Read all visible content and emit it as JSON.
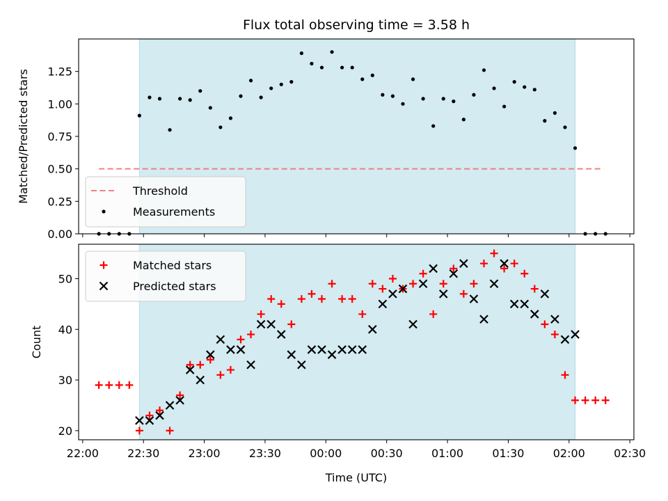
{
  "figure": {
    "title": "Flux total observing time = 3.58 h",
    "xlabel": "Time (UTC)",
    "colors": {
      "observing_span": "#d3ebf1",
      "observing_span_edge": "#b3d9e6",
      "threshold": "#f08080",
      "measurements": "#000000",
      "matched": "#ff0000",
      "predicted": "#000000"
    }
  },
  "chart_data": [
    {
      "type": "scatter",
      "ylabel": "Matched/Predicted stars",
      "xlim": [
        "21:58",
        "02:32"
      ],
      "ylim": [
        0,
        1.5
      ],
      "x_ticks": [
        "22:00",
        "22:30",
        "23:00",
        "23:30",
        "00:00",
        "00:30",
        "01:00",
        "01:30",
        "02:00",
        "02:30"
      ],
      "y_ticks": [
        "0.00",
        "0.25",
        "0.50",
        "0.75",
        "1.00",
        "1.25"
      ],
      "observing_span": [
        "22:28",
        "02:03"
      ],
      "legend": {
        "placement": "lower-left",
        "entries": [
          "Threshold",
          "Measurements"
        ]
      },
      "series": [
        {
          "name": "Threshold",
          "type": "line",
          "style": "dashed",
          "x": [
            "22:08",
            "02:17"
          ],
          "values": [
            0.5,
            0.5
          ]
        },
        {
          "name": "Measurements",
          "type": "scatter",
          "x": [
            "22:08",
            "22:13",
            "22:18",
            "22:23",
            "22:28",
            "22:33",
            "22:38",
            "22:43",
            "22:48",
            "22:53",
            "22:58",
            "23:03",
            "23:08",
            "23:13",
            "23:18",
            "23:23",
            "23:28",
            "23:33",
            "23:38",
            "23:43",
            "23:48",
            "23:53",
            "23:58",
            "00:03",
            "00:08",
            "00:13",
            "00:18",
            "00:23",
            "00:28",
            "00:33",
            "00:38",
            "00:43",
            "00:48",
            "00:53",
            "00:58",
            "01:03",
            "01:08",
            "01:13",
            "01:18",
            "01:23",
            "01:28",
            "01:33",
            "01:38",
            "01:43",
            "01:48",
            "01:53",
            "01:58",
            "02:03",
            "02:08",
            "02:13",
            "02:18"
          ],
          "values": [
            0,
            0,
            0,
            0,
            0.91,
            1.05,
            1.04,
            0.8,
            1.04,
            1.03,
            1.1,
            0.97,
            0.82,
            0.89,
            1.06,
            1.18,
            1.05,
            1.12,
            1.15,
            1.17,
            1.39,
            1.31,
            1.28,
            1.4,
            1.28,
            1.28,
            1.19,
            1.22,
            1.07,
            1.06,
            1.0,
            1.19,
            1.04,
            0.83,
            1.04,
            1.02,
            0.88,
            1.07,
            1.26,
            1.12,
            0.98,
            1.17,
            1.13,
            1.11,
            0.87,
            0.93,
            0.82,
            0.66,
            0,
            0,
            0
          ]
        }
      ]
    },
    {
      "type": "scatter",
      "ylabel": "Count",
      "xlim": [
        "21:58",
        "02:32"
      ],
      "ylim": [
        18.2,
        56.8
      ],
      "x_ticks": [
        "22:00",
        "22:30",
        "23:00",
        "23:30",
        "00:00",
        "00:30",
        "01:00",
        "01:30",
        "02:00",
        "02:30"
      ],
      "y_ticks": [
        "20",
        "30",
        "40",
        "50"
      ],
      "observing_span": [
        "22:28",
        "02:03"
      ],
      "legend": {
        "placement": "upper-left",
        "entries": [
          "Matched stars",
          "Predicted stars"
        ]
      },
      "series": [
        {
          "name": "Matched stars",
          "marker": "plus",
          "x": [
            "22:08",
            "22:13",
            "22:18",
            "22:23",
            "22:28",
            "22:33",
            "22:38",
            "22:43",
            "22:48",
            "22:53",
            "22:58",
            "23:03",
            "23:08",
            "23:13",
            "23:18",
            "23:23",
            "23:28",
            "23:33",
            "23:38",
            "23:43",
            "23:48",
            "23:53",
            "23:58",
            "00:03",
            "00:08",
            "00:13",
            "00:18",
            "00:23",
            "00:28",
            "00:33",
            "00:38",
            "00:43",
            "00:48",
            "00:53",
            "00:58",
            "01:03",
            "01:08",
            "01:13",
            "01:18",
            "01:23",
            "01:28",
            "01:33",
            "01:38",
            "01:43",
            "01:48",
            "01:53",
            "01:58",
            "02:03",
            "02:08",
            "02:13",
            "02:18"
          ],
          "values": [
            29,
            29,
            29,
            29,
            20,
            23,
            24,
            20,
            27,
            33,
            33,
            34,
            31,
            32,
            38,
            39,
            43,
            46,
            45,
            41,
            46,
            47,
            46,
            49,
            46,
            46,
            43,
            49,
            48,
            50,
            48,
            49,
            51,
            43,
            49,
            52,
            47,
            49,
            53,
            55,
            52,
            53,
            51,
            48,
            41,
            39,
            31,
            26,
            26,
            26,
            26
          ]
        },
        {
          "name": "Predicted stars",
          "marker": "x",
          "x": [
            "22:28",
            "22:33",
            "22:38",
            "22:43",
            "22:48",
            "22:53",
            "22:58",
            "23:03",
            "23:08",
            "23:13",
            "23:18",
            "23:23",
            "23:28",
            "23:33",
            "23:38",
            "23:43",
            "23:48",
            "23:53",
            "23:58",
            "00:03",
            "00:08",
            "00:13",
            "00:18",
            "00:23",
            "00:28",
            "00:33",
            "00:38",
            "00:43",
            "00:48",
            "00:53",
            "00:58",
            "01:03",
            "01:08",
            "01:13",
            "01:18",
            "01:23",
            "01:28",
            "01:33",
            "01:38",
            "01:43",
            "01:48",
            "01:53",
            "01:58",
            "02:03"
          ],
          "values": [
            22,
            22,
            23,
            25,
            26,
            32,
            30,
            35,
            38,
            36,
            36,
            33,
            41,
            41,
            39,
            35,
            33,
            36,
            36,
            35,
            36,
            36,
            36,
            40,
            45,
            47,
            48,
            41,
            49,
            52,
            47,
            51,
            53,
            46,
            42,
            49,
            53,
            45,
            45,
            43,
            47,
            42,
            38,
            39
          ]
        }
      ]
    }
  ]
}
